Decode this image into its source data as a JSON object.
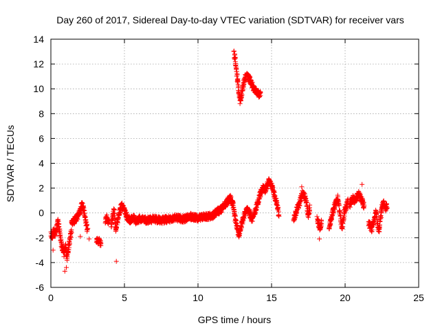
{
  "chart_data": {
    "type": "scatter",
    "title": "Day 260 of 2017, Sidereal Day-to-day VTEC variation (SDTVAR) for receiver vars",
    "xlabel": "GPS time / hours",
    "ylabel": "SDTVAR / TECUs",
    "xlim": [
      0,
      25
    ],
    "ylim": [
      -6,
      14
    ],
    "xticks": [
      0,
      5,
      10,
      15,
      20,
      25
    ],
    "yticks": [
      -6,
      -4,
      -2,
      0,
      2,
      4,
      6,
      8,
      10,
      12,
      14
    ],
    "grid": true,
    "marker": "+",
    "series": [
      {
        "name": "SDTVAR",
        "color": "#ff0000",
        "segments": [
          {
            "x0": 0.0,
            "x1": 0.4,
            "points": [
              [
                0.0,
                -1.6
              ],
              [
                0.1,
                -1.9
              ],
              [
                0.2,
                -1.4
              ],
              [
                0.3,
                -1.7
              ],
              [
                0.4,
                -1.2
              ]
            ]
          },
          {
            "x0": 0.4,
            "x1": 1.0,
            "points": [
              [
                0.4,
                -1.2
              ],
              [
                0.5,
                -0.6
              ],
              [
                0.6,
                -1.5
              ],
              [
                0.7,
                -2.4
              ],
              [
                0.8,
                -2.9
              ],
              [
                0.9,
                -3.3
              ],
              [
                1.0,
                -2.7
              ]
            ]
          },
          {
            "x0": 1.0,
            "x1": 1.4,
            "points": [
              [
                1.0,
                -2.7
              ],
              [
                1.1,
                -3.6
              ],
              [
                1.2,
                -2.8
              ],
              [
                1.3,
                -2.1
              ],
              [
                1.4,
                -1.4
              ]
            ]
          },
          {
            "x0": 1.4,
            "x1": 2.0,
            "points": [
              [
                1.4,
                -0.9
              ],
              [
                1.6,
                -0.6
              ],
              [
                1.8,
                -0.3
              ],
              [
                2.0,
                0.2
              ]
            ]
          },
          {
            "x0": 2.0,
            "x1": 2.5,
            "points": [
              [
                2.0,
                0.2
              ],
              [
                2.1,
                0.6
              ],
              [
                2.2,
                0.4
              ],
              [
                2.3,
                -0.2
              ],
              [
                2.4,
                -0.9
              ],
              [
                2.5,
                -1.5
              ]
            ]
          },
          {
            "x0": 3.1,
            "x1": 3.4,
            "points": [
              [
                3.1,
                -2.2
              ],
              [
                3.2,
                -2.4
              ],
              [
                3.3,
                -2.3
              ],
              [
                3.4,
                -2.5
              ]
            ]
          },
          {
            "x0": 3.7,
            "x1": 3.95,
            "points": [
              [
                3.7,
                -0.6
              ],
              [
                3.8,
                -0.4
              ],
              [
                3.9,
                -0.8
              ],
              [
                3.95,
                -0.7
              ]
            ]
          },
          {
            "x0": 4.1,
            "x1": 4.6,
            "points": [
              [
                4.1,
                -1.0
              ],
              [
                4.2,
                -0.4
              ],
              [
                4.3,
                0.3
              ],
              [
                4.4,
                -1.4
              ],
              [
                4.5,
                -0.8
              ],
              [
                4.6,
                -0.3
              ]
            ]
          },
          {
            "x0": 4.6,
            "x1": 6.0,
            "points": [
              [
                4.6,
                -0.3
              ],
              [
                4.8,
                0.6
              ],
              [
                5.0,
                0.2
              ],
              [
                5.2,
                -0.4
              ],
              [
                5.4,
                -0.6
              ],
              [
                5.6,
                -0.3
              ],
              [
                5.8,
                -0.7
              ],
              [
                6.0,
                -0.5
              ]
            ]
          },
          {
            "x0": 6.0,
            "x1": 9.0,
            "points": [
              [
                6.0,
                -0.5
              ],
              [
                6.5,
                -0.6
              ],
              [
                7.0,
                -0.5
              ],
              [
                7.5,
                -0.6
              ],
              [
                8.0,
                -0.5
              ],
              [
                8.5,
                -0.4
              ],
              [
                9.0,
                -0.5
              ]
            ]
          },
          {
            "x0": 9.0,
            "x1": 11.3,
            "points": [
              [
                9.0,
                -0.5
              ],
              [
                9.5,
                -0.3
              ],
              [
                10.0,
                -0.4
              ],
              [
                10.5,
                -0.3
              ],
              [
                11.0,
                -0.2
              ],
              [
                11.3,
                0.1
              ]
            ]
          },
          {
            "x0": 11.3,
            "x1": 12.2,
            "points": [
              [
                11.3,
                0.1
              ],
              [
                11.6,
                0.3
              ],
              [
                11.9,
                0.8
              ],
              [
                12.2,
                1.2
              ]
            ]
          },
          {
            "x0": 12.2,
            "x1": 12.9,
            "points": [
              [
                12.2,
                1.2
              ],
              [
                12.4,
                0.6
              ],
              [
                12.5,
                -0.3
              ],
              [
                12.6,
                -0.9
              ],
              [
                12.7,
                -1.4
              ],
              [
                12.8,
                -1.9
              ],
              [
                12.9,
                -1.2
              ]
            ]
          },
          {
            "x0": 12.9,
            "x1": 13.8,
            "points": [
              [
                12.9,
                -1.2
              ],
              [
                13.1,
                -0.4
              ],
              [
                13.3,
                0.3
              ],
              [
                13.5,
                0.0
              ],
              [
                13.7,
                -0.6
              ],
              [
                13.8,
                -0.2
              ]
            ]
          },
          {
            "x0": 13.8,
            "x1": 14.6,
            "points": [
              [
                13.8,
                -0.2
              ],
              [
                14.0,
                0.6
              ],
              [
                14.2,
                1.4
              ],
              [
                14.4,
                2.0
              ],
              [
                14.6,
                1.8
              ]
            ]
          },
          {
            "x0": 14.6,
            "x1": 15.5,
            "points": [
              [
                14.6,
                1.8
              ],
              [
                14.8,
                2.6
              ],
              [
                15.0,
                2.2
              ],
              [
                15.2,
                1.4
              ],
              [
                15.4,
                0.6
              ],
              [
                15.5,
                -0.3
              ]
            ]
          },
          {
            "x0": 12.45,
            "x1": 12.7,
            "points": [
              [
                12.45,
                12.8
              ],
              [
                12.5,
                12.6
              ],
              [
                12.55,
                12.2
              ],
              [
                12.6,
                11.6
              ],
              [
                12.65,
                11.0
              ],
              [
                12.7,
                10.6
              ]
            ]
          },
          {
            "x0": 12.7,
            "x1": 12.9,
            "points": [
              [
                12.7,
                10.6
              ],
              [
                12.75,
                10.0
              ],
              [
                12.8,
                9.4
              ],
              [
                12.85,
                9.0
              ],
              [
                12.9,
                9.2
              ]
            ]
          },
          {
            "x0": 12.9,
            "x1": 13.5,
            "points": [
              [
                12.9,
                9.2
              ],
              [
                13.0,
                9.8
              ],
              [
                13.1,
                10.4
              ],
              [
                13.2,
                10.9
              ],
              [
                13.35,
                11.0
              ],
              [
                13.5,
                10.8
              ]
            ]
          },
          {
            "x0": 13.5,
            "x1": 14.25,
            "points": [
              [
                13.5,
                10.8
              ],
              [
                13.65,
                10.4
              ],
              [
                13.8,
                10.0
              ],
              [
                13.95,
                9.8
              ],
              [
                14.1,
                9.6
              ],
              [
                14.25,
                9.5
              ]
            ]
          },
          {
            "x0": 16.5,
            "x1": 17.3,
            "points": [
              [
                16.5,
                -0.6
              ],
              [
                16.7,
                0.2
              ],
              [
                16.9,
                0.8
              ],
              [
                17.1,
                1.6
              ],
              [
                17.3,
                1.2
              ]
            ]
          },
          {
            "x0": 17.3,
            "x1": 17.6,
            "points": [
              [
                17.3,
                1.2
              ],
              [
                17.4,
                0.6
              ],
              [
                17.5,
                -0.2
              ],
              [
                17.6,
                0.4
              ]
            ]
          },
          {
            "x0": 18.1,
            "x1": 18.4,
            "points": [
              [
                18.1,
                -0.4
              ],
              [
                18.2,
                -0.9
              ],
              [
                18.3,
                -1.3
              ],
              [
                18.4,
                -0.7
              ]
            ]
          },
          {
            "x0": 18.9,
            "x1": 19.6,
            "points": [
              [
                18.9,
                -1.2
              ],
              [
                19.1,
                -0.3
              ],
              [
                19.3,
                0.6
              ],
              [
                19.5,
                1.2
              ],
              [
                19.6,
                0.4
              ]
            ]
          },
          {
            "x0": 19.6,
            "x1": 20.2,
            "points": [
              [
                19.6,
                0.4
              ],
              [
                19.7,
                -0.6
              ],
              [
                19.8,
                -1.2
              ],
              [
                19.9,
                -0.4
              ],
              [
                20.0,
                0.3
              ],
              [
                20.2,
                0.9
              ]
            ]
          },
          {
            "x0": 20.3,
            "x1": 21.3,
            "points": [
              [
                20.3,
                0.6
              ],
              [
                20.5,
                1.2
              ],
              [
                20.7,
                0.9
              ],
              [
                20.9,
                1.6
              ],
              [
                21.1,
                1.1
              ],
              [
                21.3,
                0.5
              ]
            ]
          },
          {
            "x0": 21.6,
            "x1": 22.3,
            "points": [
              [
                21.6,
                -0.8
              ],
              [
                21.8,
                -1.3
              ],
              [
                22.0,
                -0.6
              ],
              [
                22.1,
                0.1
              ],
              [
                22.2,
                -0.9
              ],
              [
                22.3,
                -1.5
              ]
            ]
          },
          {
            "x0": 22.3,
            "x1": 22.85,
            "points": [
              [
                22.3,
                -1.5
              ],
              [
                22.4,
                -0.5
              ],
              [
                22.5,
                0.4
              ],
              [
                22.6,
                0.9
              ],
              [
                22.7,
                0.3
              ],
              [
                22.85,
                0.6
              ]
            ]
          }
        ],
        "outliers": [
          [
            0.15,
            -3.0
          ],
          [
            0.95,
            -4.7
          ],
          [
            1.05,
            -4.4
          ],
          [
            2.0,
            -1.9
          ],
          [
            2.6,
            -2.1
          ],
          [
            4.45,
            -3.9
          ],
          [
            17.05,
            2.1
          ],
          [
            18.25,
            -2.1
          ],
          [
            21.15,
            2.3
          ]
        ]
      }
    ]
  }
}
